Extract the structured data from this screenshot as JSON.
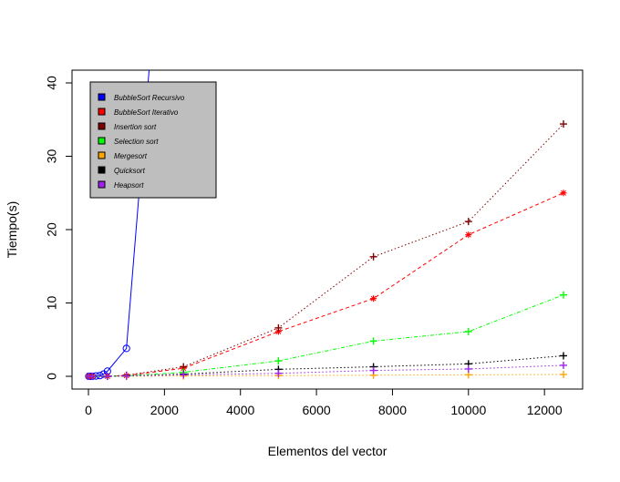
{
  "chart_data": {
    "type": "line",
    "title": "",
    "xlabel": "Elementos del vector",
    "ylabel": "Tiempo(s)",
    "xlim": [
      0,
      12500
    ],
    "ylim": [
      0,
      40
    ],
    "xticks": [
      0,
      2000,
      4000,
      6000,
      8000,
      10000,
      12000
    ],
    "yticks": [
      0,
      10,
      20,
      30,
      40
    ],
    "legend_position": "top-left",
    "legend_background": "#bebebe",
    "series": [
      {
        "name": "BubbleSort Recursivo",
        "color": "#0000ff",
        "marker": "circle",
        "line": "solid",
        "points": [
          [
            10,
            0.0
          ],
          [
            50,
            0.0
          ],
          [
            100,
            0.0
          ],
          [
            200,
            0.05
          ],
          [
            300,
            0.1
          ],
          [
            400,
            0.3
          ],
          [
            500,
            0.7
          ],
          [
            1000,
            3.8
          ],
          [
            1600,
            42
          ]
        ]
      },
      {
        "name": "BubbleSort Iterativo",
        "color": "#ff0000",
        "marker": "star",
        "line": "dashed",
        "points": [
          [
            10,
            0.0
          ],
          [
            100,
            0.0
          ],
          [
            500,
            0.0
          ],
          [
            1000,
            0.1
          ],
          [
            2500,
            1.1
          ],
          [
            5000,
            6.1
          ],
          [
            7500,
            10.6
          ],
          [
            10000,
            19.3
          ],
          [
            12500,
            25.0
          ]
        ]
      },
      {
        "name": "Insertion sort",
        "color": "#7f0000",
        "marker": "plus",
        "line": "dotted",
        "points": [
          [
            10,
            0.0
          ],
          [
            100,
            0.0
          ],
          [
            500,
            0.0
          ],
          [
            1000,
            0.15
          ],
          [
            2500,
            1.3
          ],
          [
            5000,
            6.6
          ],
          [
            7500,
            16.3
          ],
          [
            10000,
            21.1
          ],
          [
            12500,
            34.4
          ]
        ]
      },
      {
        "name": "Selection sort",
        "color": "#00ff00",
        "marker": "plus",
        "line": "dashdot",
        "points": [
          [
            10,
            0.0
          ],
          [
            100,
            0.0
          ],
          [
            500,
            0.0
          ],
          [
            1000,
            0.05
          ],
          [
            2500,
            0.55
          ],
          [
            5000,
            2.1
          ],
          [
            7500,
            4.8
          ],
          [
            10000,
            6.1
          ],
          [
            12500,
            11.1
          ]
        ]
      },
      {
        "name": "Mergesort",
        "color": "#ffa500",
        "marker": "plus",
        "line": "dotted",
        "points": [
          [
            10,
            0.0
          ],
          [
            100,
            0.0
          ],
          [
            500,
            0.0
          ],
          [
            1000,
            0.0
          ],
          [
            2500,
            0.05
          ],
          [
            5000,
            0.1
          ],
          [
            7500,
            0.15
          ],
          [
            10000,
            0.2
          ],
          [
            12500,
            0.25
          ]
        ]
      },
      {
        "name": "Quicksort",
        "color": "#000000",
        "marker": "plus",
        "line": "dotted",
        "points": [
          [
            10,
            0.0
          ],
          [
            100,
            0.0
          ],
          [
            500,
            0.0
          ],
          [
            1000,
            0.05
          ],
          [
            2500,
            0.3
          ],
          [
            5000,
            0.95
          ],
          [
            7500,
            1.3
          ],
          [
            10000,
            1.7
          ],
          [
            12500,
            2.8
          ]
        ]
      },
      {
        "name": "Heapsort",
        "color": "#a020f0",
        "marker": "plus",
        "line": "dotted",
        "points": [
          [
            10,
            0.0
          ],
          [
            100,
            0.0
          ],
          [
            500,
            0.0
          ],
          [
            1000,
            0.05
          ],
          [
            2500,
            0.2
          ],
          [
            5000,
            0.4
          ],
          [
            7500,
            0.8
          ],
          [
            10000,
            1.0
          ],
          [
            12500,
            1.5
          ]
        ]
      }
    ]
  }
}
